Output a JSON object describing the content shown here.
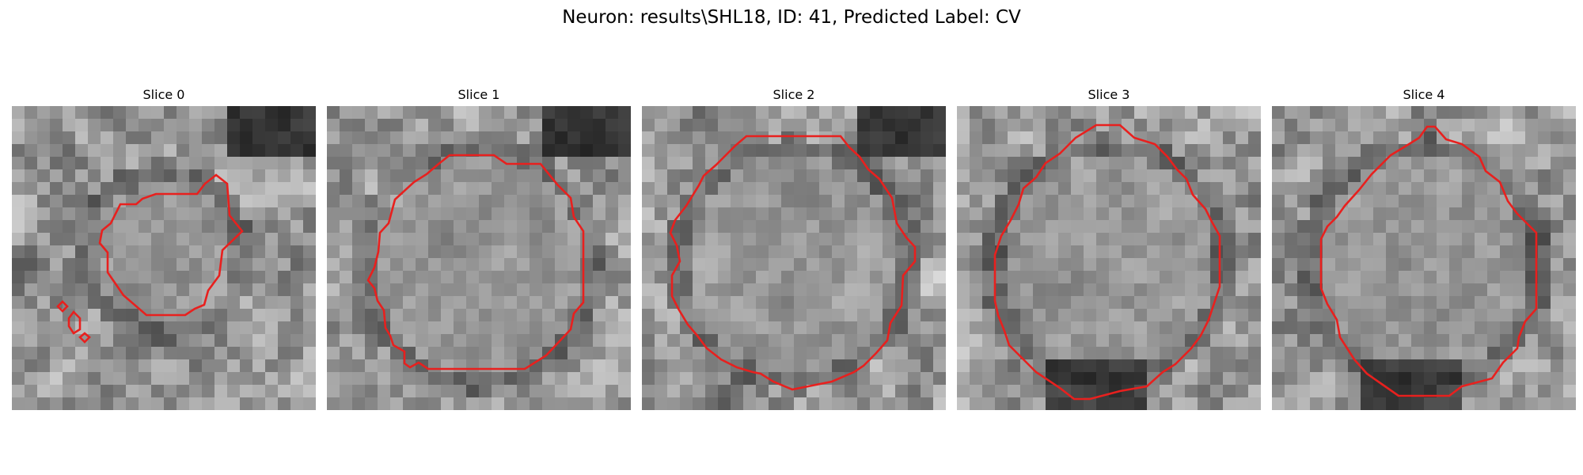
{
  "figure": {
    "suptitle": "Neuron: results\\SHL18, ID: 41, Predicted Label: CV"
  },
  "panels": [
    {
      "title": "Slice 0"
    },
    {
      "title": "Slice 1"
    },
    {
      "title": "Slice 2"
    },
    {
      "title": "Slice 3"
    },
    {
      "title": "Slice 4"
    }
  ],
  "colors": {
    "contour": "#e8201e",
    "background": "#ffffff",
    "colormap": "gray"
  }
}
